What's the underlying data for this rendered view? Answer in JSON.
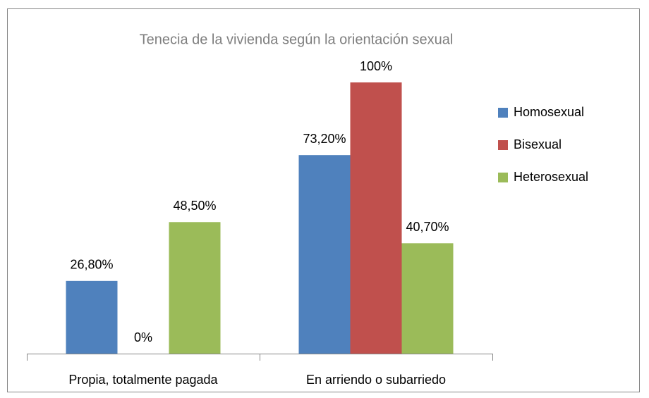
{
  "chart_data": {
    "type": "bar",
    "title": "Tenecia de la vivienda según la orientación sexual",
    "categories": [
      "Propia, totalmente pagada",
      "En arriendo o subarriedo"
    ],
    "series": [
      {
        "name": "Homosexual",
        "color": "#4f81bd",
        "values": [
          26.8,
          73.2
        ],
        "value_labels": [
          "26,80%",
          "73,20%"
        ]
      },
      {
        "name": "Bisexual",
        "color": "#c0504d",
        "values": [
          0,
          100
        ],
        "value_labels": [
          "0%",
          "100%"
        ]
      },
      {
        "name": "Heterosexual",
        "color": "#9bbb59",
        "values": [
          48.5,
          40.7
        ],
        "value_labels": [
          "48,50%",
          "40,70%"
        ]
      }
    ],
    "legend": "right"
  }
}
